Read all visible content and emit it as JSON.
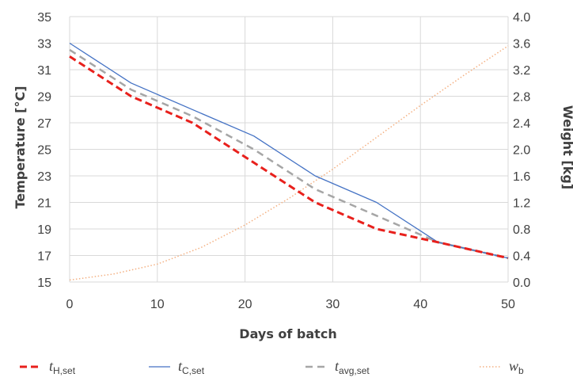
{
  "chart_data": {
    "type": "line",
    "title": "",
    "xlabel": "Days of batch",
    "ylabel_left": "Temperature [°C]",
    "ylabel_right": "Weight [kg]",
    "xlim": [
      0,
      50
    ],
    "ylim_left": [
      15,
      35
    ],
    "ylim_right": [
      0,
      4
    ],
    "x_ticks": [
      "0",
      "10",
      "20",
      "30",
      "40",
      "50"
    ],
    "y_left_ticks": [
      "15",
      "17",
      "19",
      "21",
      "23",
      "25",
      "27",
      "29",
      "31",
      "33",
      "35"
    ],
    "y_right_ticks": [
      "0.0",
      "0.4",
      "0.8",
      "1.2",
      "1.6",
      "2.0",
      "2.4",
      "2.8",
      "3.2",
      "3.6",
      "4.0"
    ],
    "grid": true,
    "legend_position": "bottom",
    "series": [
      {
        "name": "t_H,set",
        "label_main": "t",
        "label_sub": "H,set",
        "axis": "left",
        "color": "#e8201c",
        "style": "dashed-bold",
        "x": [
          0,
          7,
          14,
          21,
          28,
          35,
          42,
          50
        ],
        "y": [
          32,
          29,
          27,
          24,
          21,
          19,
          18,
          16.8
        ]
      },
      {
        "name": "t_C,set",
        "label_main": "t",
        "label_sub": "C,set",
        "axis": "left",
        "color": "#4472c4",
        "style": "solid",
        "x": [
          0,
          7,
          14,
          21,
          28,
          35,
          42,
          50
        ],
        "y": [
          33,
          30,
          28,
          26,
          23,
          21,
          18,
          16.8
        ]
      },
      {
        "name": "t_avg,set",
        "label_main": "t",
        "label_sub": "avg,set",
        "axis": "left",
        "color": "#a6a6a6",
        "style": "dashed",
        "x": [
          0,
          7,
          14,
          21,
          28,
          35,
          42,
          50
        ],
        "y": [
          32.5,
          29.5,
          27.5,
          25,
          22,
          20,
          18,
          16.8
        ]
      },
      {
        "name": "w_b",
        "label_main": "w",
        "label_sub": "b",
        "axis": "right",
        "color": "#f4b183",
        "style": "dotted",
        "x": [
          0,
          5,
          10,
          15,
          20,
          25,
          30,
          35,
          40,
          45,
          50
        ],
        "y": [
          0.03,
          0.12,
          0.27,
          0.52,
          0.86,
          1.26,
          1.7,
          2.18,
          2.66,
          3.12,
          3.56
        ]
      }
    ]
  }
}
